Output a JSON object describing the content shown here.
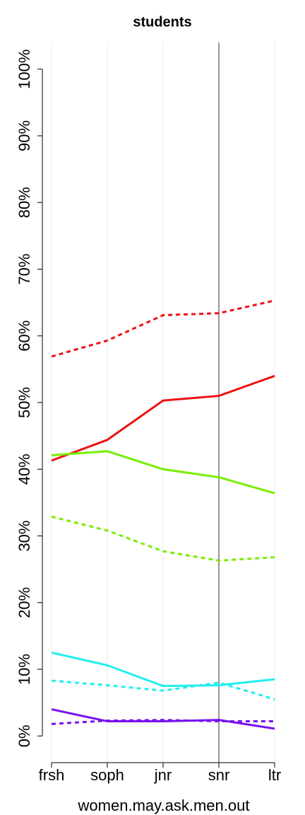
{
  "chart_data": {
    "type": "line",
    "title": "students",
    "x_label": "women.may.ask.men.out",
    "categories": [
      "frsh",
      "soph",
      "jnr",
      "snr",
      "ltr"
    ],
    "ylim": [
      -4,
      104
    ],
    "yticks": [
      {
        "value": 0,
        "label": "0%"
      },
      {
        "value": 10,
        "label": "10%"
      },
      {
        "value": 20,
        "label": "20%"
      },
      {
        "value": 30,
        "label": "30%"
      },
      {
        "value": 40,
        "label": "40%"
      },
      {
        "value": 50,
        "label": "50%"
      },
      {
        "value": 60,
        "label": "60%"
      },
      {
        "value": 70,
        "label": "70%"
      },
      {
        "value": 80,
        "label": "80%"
      },
      {
        "value": 90,
        "label": "90%"
      },
      {
        "value": 100,
        "label": "100%"
      }
    ],
    "vline_category": "snr",
    "grid": true,
    "series": [
      {
        "color": "#ee1111",
        "linestyle": "dashed",
        "values": [
          56.9,
          59.3,
          63.1,
          63.4,
          65.3
        ]
      },
      {
        "color": "#ee1111",
        "linestyle": "solid",
        "values": [
          41.3,
          44.4,
          50.3,
          51.0,
          54.0
        ]
      },
      {
        "color": "#77ee00",
        "linestyle": "solid",
        "values": [
          42.1,
          42.7,
          40.0,
          38.8,
          36.4
        ]
      },
      {
        "color": "#77ee00",
        "linestyle": "dashed",
        "values": [
          32.9,
          30.8,
          27.7,
          26.3,
          26.8
        ]
      },
      {
        "color": "#22eeee",
        "linestyle": "solid",
        "values": [
          12.5,
          10.6,
          7.5,
          7.6,
          8.5
        ]
      },
      {
        "color": "#22eeee",
        "linestyle": "dashed",
        "values": [
          8.3,
          7.6,
          6.8,
          8.0,
          5.5
        ]
      },
      {
        "color": "#7711ee",
        "linestyle": "solid",
        "values": [
          4.0,
          2.2,
          2.2,
          2.4,
          1.1
        ]
      },
      {
        "color": "#7711ee",
        "linestyle": "dashed",
        "values": [
          1.8,
          2.3,
          2.4,
          2.2,
          2.2
        ]
      }
    ]
  }
}
